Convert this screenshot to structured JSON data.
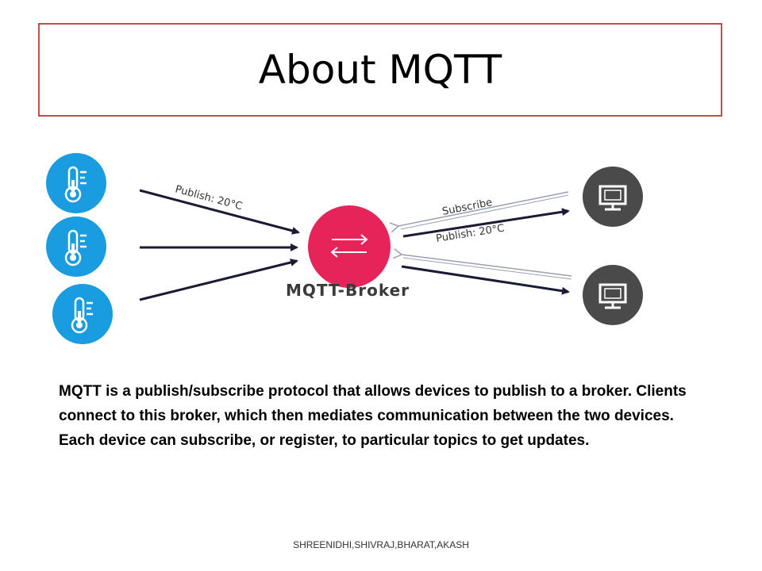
{
  "slide": {
    "title": "About MQTT"
  },
  "diagram": {
    "broker_label": "MQTT-Broker",
    "publish_label_left": "Publish: 20°C",
    "subscribe_label": "Subscribe",
    "publish_label_right": "Publish: 20°C",
    "sensor_icon": "thermometer-icon",
    "client_icon": "monitor-icon",
    "broker_icon": "exchange-arrows-icon",
    "colors": {
      "sensor": "#1a9ce0",
      "broker": "#e6245a",
      "client": "#4a4a4a",
      "arrow": "#1b1b35"
    }
  },
  "body": {
    "description": "MQTT is a publish/subscribe protocol that allows devices to publish to a broker. Clients connect to this broker, which then mediates communication between the two devices. Each device can subscribe, or register, to particular topics to get updates."
  },
  "footer": {
    "authors": "SHREENIDHI,SHIVRAJ,BHARAT,AKASH"
  }
}
